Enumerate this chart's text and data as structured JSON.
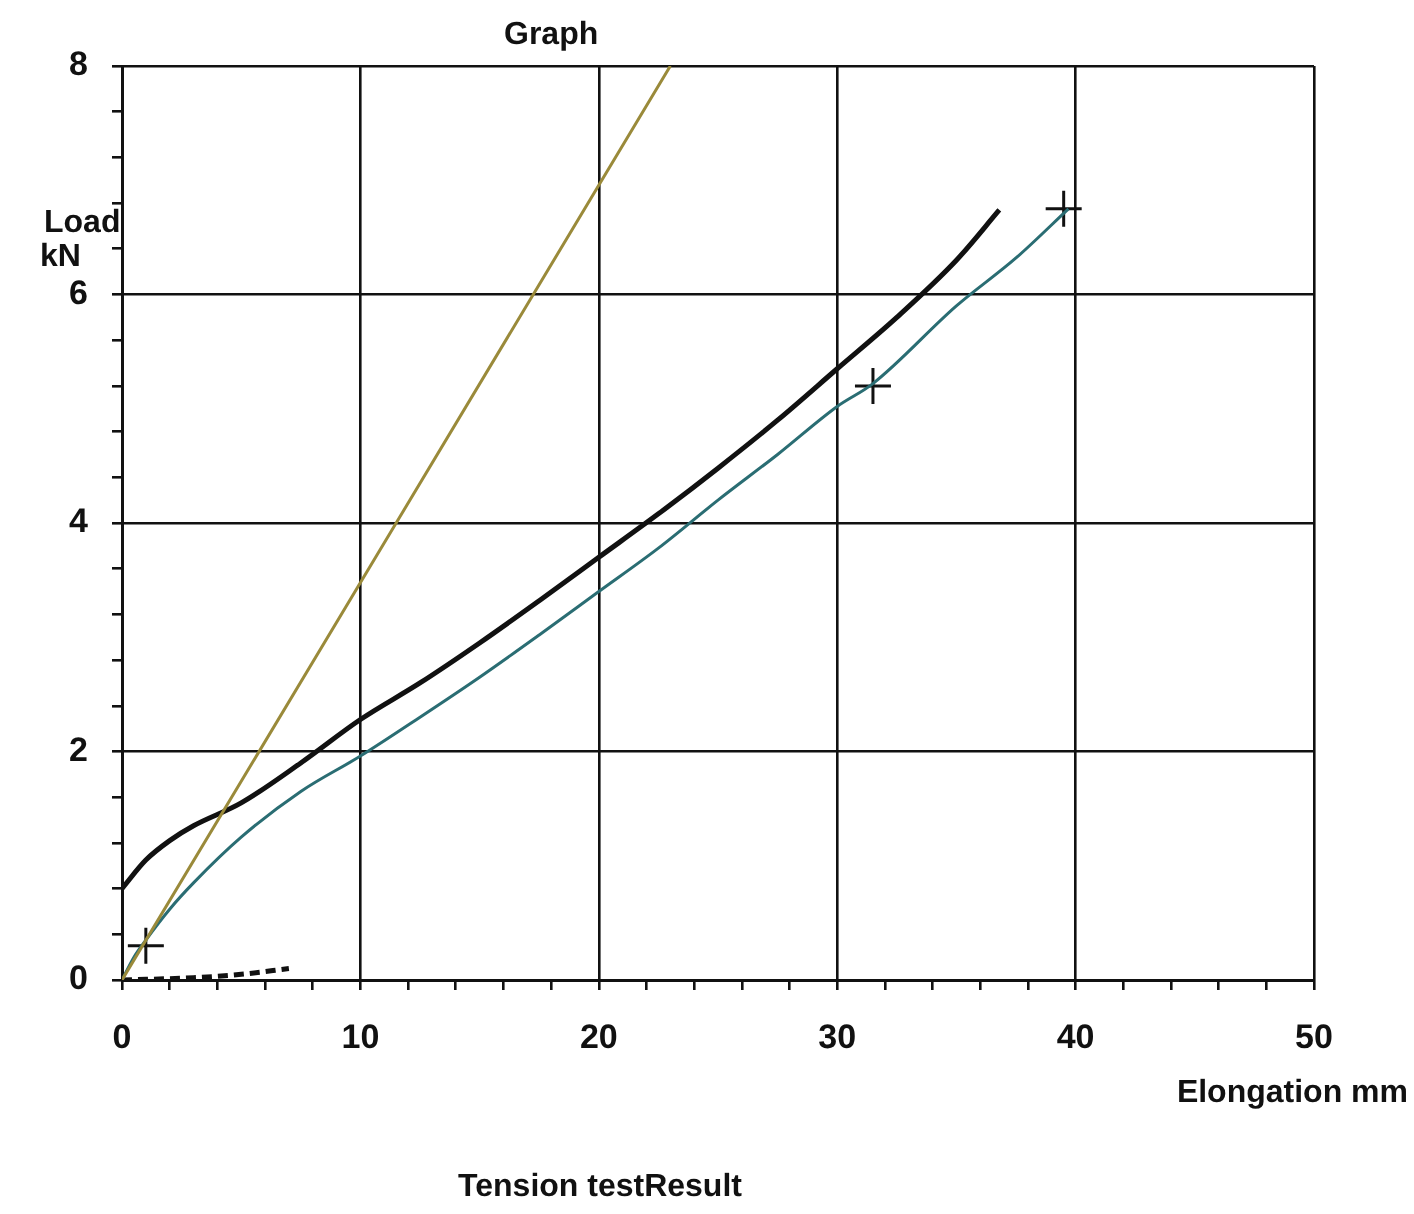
{
  "chart_data": {
    "type": "line",
    "title": "Graph",
    "xlabel": "Elongation mm",
    "ylabel": "Load kN",
    "annotations": [
      "Tension testResult"
    ],
    "xlim": [
      0,
      50
    ],
    "ylim": [
      0,
      8
    ],
    "xticks": [
      0,
      {
        "value": 2,
        "label": null
      },
      {
        "value": 4,
        "label": null
      },
      {
        "value": 6,
        "label": null
      },
      {
        "value": 8,
        "label": null
      },
      10,
      {
        "value": 12,
        "label": null
      },
      {
        "value": 14,
        "label": null
      },
      {
        "value": 16,
        "label": null
      },
      {
        "value": 18,
        "label": null
      },
      20,
      {
        "value": 22,
        "label": null
      },
      {
        "value": 24,
        "label": null
      },
      {
        "value": 26,
        "label": null
      },
      {
        "value": 28,
        "label": null
      },
      30,
      {
        "value": 32,
        "label": null
      },
      {
        "value": 34,
        "label": null
      },
      {
        "value": 36,
        "label": null
      },
      {
        "value": 38,
        "label": null
      },
      40,
      {
        "value": 42,
        "label": null
      },
      {
        "value": 44,
        "label": null
      },
      {
        "value": 46,
        "label": null
      },
      {
        "value": 48,
        "label": null
      },
      50
    ],
    "yticks": [
      0,
      {
        "value": 0.4,
        "label": null
      },
      {
        "value": 0.8,
        "label": null
      },
      {
        "value": 1.2,
        "label": null
      },
      {
        "value": 1.6,
        "label": null
      },
      2,
      {
        "value": 2.4,
        "label": null
      },
      {
        "value": 2.8,
        "label": null
      },
      {
        "value": 3.2,
        "label": null
      },
      {
        "value": 3.6,
        "label": null
      },
      4,
      {
        "value": 4.4,
        "label": null
      },
      {
        "value": 4.8,
        "label": null
      },
      {
        "value": 5.2,
        "label": null
      },
      {
        "value": 5.6,
        "label": null
      },
      6,
      {
        "value": 6.4,
        "label": null
      },
      {
        "value": 6.8,
        "label": null
      },
      {
        "value": 7.2,
        "label": null
      },
      {
        "value": 7.6,
        "label": null
      },
      8
    ],
    "grid": true,
    "legend": false,
    "marker": "none",
    "line_style": "solid",
    "series": [
      {
        "color": "#9a8a3a",
        "x": [
          0,
          23
        ],
        "values": [
          0,
          8
        ]
      },
      {
        "color": "#111111",
        "x": [
          0,
          1,
          2,
          3,
          5,
          7.5,
          10,
          12.5,
          15,
          17.5,
          20,
          22.5,
          25,
          27.5,
          30,
          32.5,
          35,
          36.8
        ],
        "values": [
          0.8,
          1.05,
          1.22,
          1.35,
          1.55,
          1.9,
          2.28,
          2.6,
          2.95,
          3.32,
          3.7,
          4.08,
          4.48,
          4.9,
          5.35,
          5.8,
          6.3,
          6.74
        ]
      },
      {
        "color": "#2a6d73",
        "x": [
          0,
          0.5,
          1,
          2,
          3,
          5,
          7.5,
          10,
          12.5,
          15,
          17.5,
          20,
          22.5,
          25,
          27.5,
          30,
          31.5,
          35,
          37.5,
          39.7
        ],
        "values": [
          0,
          0.2,
          0.35,
          0.62,
          0.85,
          1.25,
          1.65,
          1.96,
          2.3,
          2.65,
          3.02,
          3.4,
          3.78,
          4.2,
          4.6,
          5.02,
          5.22,
          5.9,
          6.32,
          6.75
        ]
      },
      {
        "color": "#111111",
        "line_style": "dashed",
        "x": [
          0,
          3,
          5,
          7
        ],
        "values": [
          0,
          0.02,
          0.05,
          0.1
        ]
      },
      {
        "type": "scatter",
        "marker": "cross",
        "color": "#111111",
        "x": [
          1,
          31.5,
          39.5
        ],
        "values": [
          0.3,
          5.2,
          6.75
        ]
      }
    ]
  }
}
